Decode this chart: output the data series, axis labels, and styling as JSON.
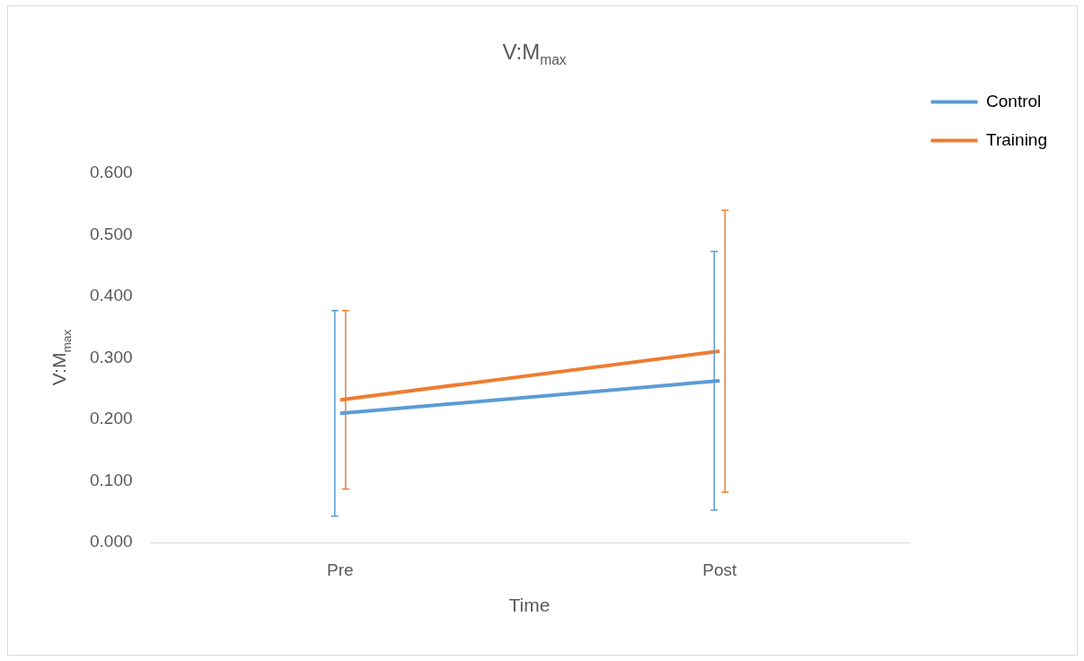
{
  "chart_data": {
    "type": "line",
    "title": "V:M$_{max}$",
    "xlabel": "Time",
    "ylabel": "V:M$_{max}$",
    "categories": [
      "Pre",
      "Post"
    ],
    "series": [
      {
        "name": "Control",
        "color": "#5b9bd5",
        "values": [
          0.21,
          0.263
        ],
        "errors": [
          0.167,
          0.21
        ]
      },
      {
        "name": "Training",
        "color": "#ed7d31",
        "values": [
          0.232,
          0.311
        ],
        "errors": [
          0.145,
          0.229
        ]
      }
    ],
    "ylim": [
      0,
      0.6
    ],
    "yticks": [
      {
        "value": 0,
        "label": "0.000"
      },
      {
        "value": 0.1,
        "label": "0.100"
      },
      {
        "value": 0.2,
        "label": "0.200"
      },
      {
        "value": 0.3,
        "label": "0.300"
      },
      {
        "value": 0.4,
        "label": "0.400"
      },
      {
        "value": 0.5,
        "label": "0.500"
      },
      {
        "value": 0.6,
        "label": "0.600"
      }
    ],
    "grid": false,
    "legend": "top right",
    "marker": "none",
    "line_style": "solid"
  }
}
